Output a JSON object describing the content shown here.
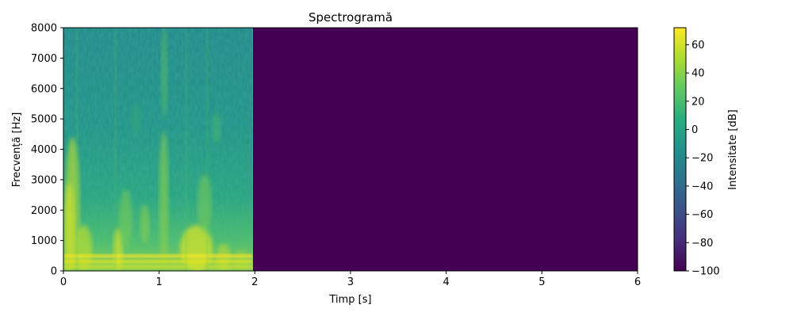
{
  "chart_data": {
    "type": "heatmap",
    "title": "Spectrogramă",
    "xlabel": "Timp [s]",
    "ylabel": "Frecvență [Hz]",
    "xlim": [
      0,
      6
    ],
    "ylim": [
      0,
      8000
    ],
    "x_ticks": [
      "0",
      "1",
      "2",
      "3",
      "4",
      "5",
      "6"
    ],
    "y_ticks": [
      "0",
      "1000",
      "2000",
      "3000",
      "4000",
      "5000",
      "6000",
      "7000",
      "8000"
    ],
    "data_end_time": 1.98,
    "colormap": "viridis",
    "colorbar": {
      "label": "Intensitate [dB]",
      "range": [
        -100,
        72
      ],
      "ticks": [
        "60",
        "40",
        "20",
        "0",
        "−20",
        "−40",
        "−60",
        "−80",
        "−100"
      ],
      "legend_position": "right"
    },
    "regions": [
      {
        "description": "speech energy 0–1.98 s",
        "typical_db": [
          -5,
          65
        ]
      },
      {
        "description": "silence 1.98–6 s",
        "db": -100
      }
    ],
    "grid": false
  }
}
